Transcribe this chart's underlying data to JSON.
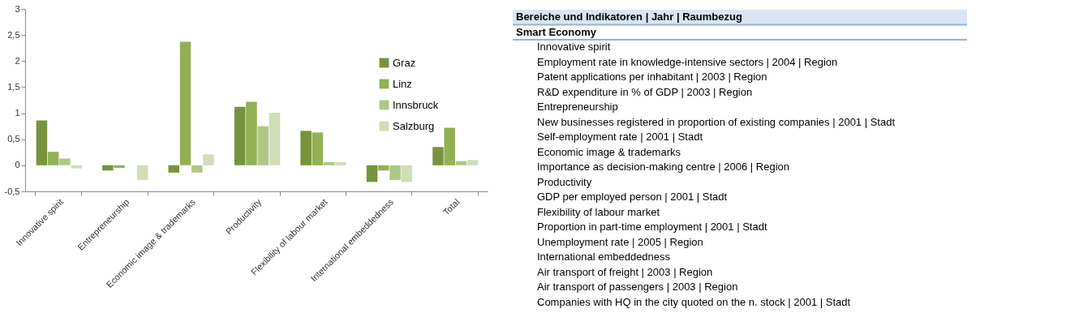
{
  "chart_data": [
    {
      "type": "bar",
      "categories": [
        "Innovative spirit",
        "Entrepreneurship",
        "Economic image & trademarks",
        "Productivity",
        "Flexibility of labour market",
        "International embeddedness",
        "Total"
      ],
      "series": [
        {
          "name": "Graz",
          "color": "#77933c",
          "values": [
            0.86,
            -0.1,
            -0.14,
            1.12,
            0.66,
            -0.32,
            0.35
          ]
        },
        {
          "name": "Linz",
          "color": "#92b054",
          "values": [
            0.26,
            -0.05,
            2.37,
            1.22,
            0.63,
            -0.1,
            0.72
          ]
        },
        {
          "name": "Innsbruck",
          "color": "#afc784",
          "values": [
            0.13,
            null,
            -0.14,
            0.75,
            0.06,
            -0.28,
            0.08
          ]
        },
        {
          "name": "Salzburg",
          "color": "#d0ddb8",
          "values": [
            -0.06,
            -0.28,
            0.21,
            1.01,
            0.06,
            -0.32,
            0.1
          ]
        }
      ],
      "ylim": [
        -0.5,
        3
      ],
      "yticks": [
        {
          "value": -0.5,
          "label": "-0,5"
        },
        0,
        {
          "value": 0.5,
          "label": "0,5"
        },
        1,
        {
          "value": 1.5,
          "label": "1,5"
        },
        2,
        {
          "value": 2.5,
          "label": "2,5"
        },
        3
      ],
      "grid": false,
      "legend": "top right"
    },
    {
      "type": "other",
      "title": "Bereiche und Indikatoren | Jahr | Raumbezug",
      "subtitle": "Smart Economy",
      "annotations": [
        "Innovative spirit",
        "Employment rate in knowledge-intensive sectors | 2004 | Region",
        "Patent applications per inhabitant | 2003 | Region",
        "R&D expenditure in % of GDP | 2003 | Region",
        "Entrepreneurship",
        "New businesses registered in proportion of existing companies | 2001 | Stadt",
        "Self-employment rate | 2001 | Stadt",
        "Economic image & trademarks",
        "Importance as decision-making centre | 2006 | Region",
        "Productivity",
        "GDP per employed person | 2001 | Stadt",
        "Flexibility of labour market",
        "Proportion in part-time employment | 2001 | Stadt",
        "Unemployment rate | 2005 | Region",
        "International embeddedness",
        "Air transport of freight | 2003 | Region",
        "Air transport of passengers | 2003 | Region",
        "Companies with HQ in the city quoted on the n. stock | 2001 | Stadt"
      ]
    }
  ]
}
